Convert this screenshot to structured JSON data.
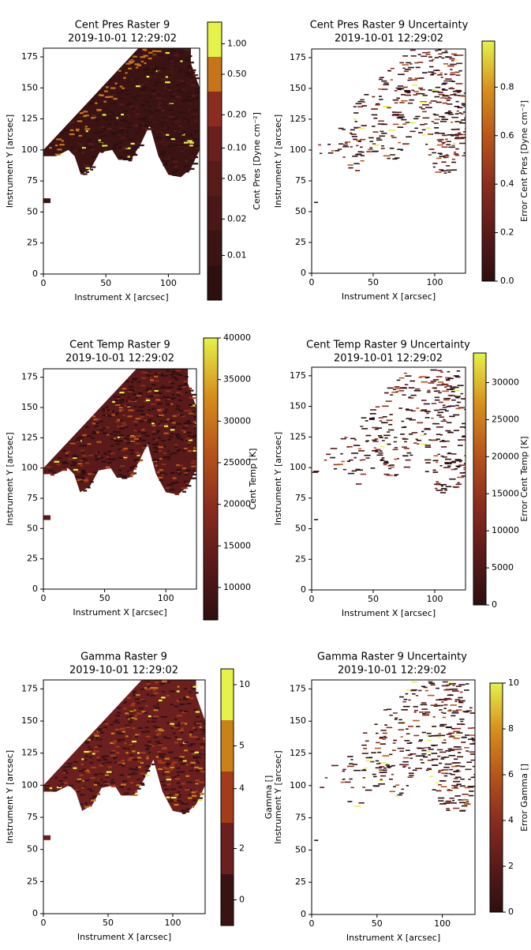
{
  "chart_data": [
    {
      "type": "heatmap",
      "title": "Cent Pres Raster 9",
      "subtitle": "2019-10-01 12:29:02",
      "xlabel": "Instrument X [arcsec]",
      "ylabel": "Instrument Y [arcsec]",
      "xlim": [
        0,
        125
      ],
      "ylim": [
        0,
        182
      ],
      "xticks": [
        0,
        50,
        100
      ],
      "yticks": [
        0,
        25,
        50,
        75,
        100,
        125,
        150,
        175
      ],
      "colorbar": {
        "label": "Cent Pres [Dyne cm⁻²]",
        "scale": "discrete",
        "bounds": [
          0.003,
          0.008,
          0.015,
          0.03,
          0.07,
          0.15,
          0.3,
          0.7,
          1.5
        ],
        "colors": [
          "#2e0f10",
          "#3b1313",
          "#481716",
          "#571b1a",
          "#681f1e",
          "#8a2c1e",
          "#c8741a",
          "#e4f24a"
        ],
        "ticks": [
          0.01,
          0.02,
          0.05,
          {
            "value": 0.1,
            "label": "0.10"
          },
          {
            "value": 0.2,
            "label": "0.20"
          },
          {
            "value": 0.5,
            "label": "0.50"
          },
          {
            "value": 1,
            "label": "1.00"
          }
        ]
      }
    },
    {
      "type": "heatmap",
      "title": "Cent Pres Raster 9 Uncertainty",
      "subtitle": "2019-10-01 12:29:02",
      "xlabel": "Instrument X [arcsec]",
      "ylabel": "Instrument Y [arcsec]",
      "xlim": [
        0,
        125
      ],
      "ylim": [
        0,
        182
      ],
      "xticks": [
        0,
        50,
        100
      ],
      "yticks": [
        0,
        25,
        50,
        75,
        100,
        125,
        150,
        175
      ],
      "colorbar": {
        "label": "Error Cent Pres [Dyne cm⁻²]",
        "scale": "linear",
        "clim": [
          0,
          0.99
        ],
        "colors": [
          "#2e0f10",
          "#5a1a1a",
          "#8a2c1e",
          "#b8551a",
          "#d8901c",
          "#e4f24a"
        ],
        "ticks": [
          {
            "value": 0,
            "label": "0.0"
          },
          0.2,
          0.4,
          0.6,
          0.8
        ]
      }
    },
    {
      "type": "heatmap",
      "title": "Cent Temp Raster 9",
      "subtitle": "2019-10-01 12:29:02",
      "xlabel": "Instrument X [arcsec]",
      "ylabel": "Instrument Y [arcsec]",
      "xlim": [
        0,
        125
      ],
      "ylim": [
        0,
        182
      ],
      "xticks": [
        0,
        50,
        100
      ],
      "yticks": [
        0,
        25,
        50,
        75,
        100,
        125,
        150,
        175
      ],
      "colorbar": {
        "label": "Cent Temp [K]",
        "scale": "linear",
        "clim": [
          6100,
          40000
        ],
        "colors": [
          "#2e0f10",
          "#5a1a1a",
          "#8a2c1e",
          "#b8551a",
          "#d8901c",
          "#e4f24a"
        ],
        "ticks": [
          10000,
          15000,
          20000,
          25000,
          30000,
          35000,
          40000
        ]
      }
    },
    {
      "type": "heatmap",
      "title": "Cent Temp Raster 9 Uncertainty",
      "subtitle": "2019-10-01 12:29:02",
      "xlabel": "Instrument X [arcsec]",
      "ylabel": "Instrument Y [arcsec]",
      "xlim": [
        0,
        125
      ],
      "ylim": [
        0,
        182
      ],
      "xticks": [
        0,
        50,
        100
      ],
      "yticks": [
        0,
        25,
        50,
        75,
        100,
        125,
        150,
        175
      ],
      "colorbar": {
        "label": "Error Cent Temp [K]",
        "scale": "linear",
        "clim": [
          0,
          34000
        ],
        "colors": [
          "#2e0f10",
          "#5a1a1a",
          "#8a2c1e",
          "#b8551a",
          "#d8901c",
          "#e4f24a"
        ],
        "ticks": [
          0,
          5000,
          10000,
          15000,
          20000,
          25000,
          30000
        ]
      }
    },
    {
      "type": "heatmap",
      "title": "Gamma Raster 9",
      "subtitle": "2019-10-01 12:29:02",
      "xlabel": "Instrument X [arcsec]",
      "ylabel": "Instrument Y [arcsec]",
      "xlim": [
        0,
        125
      ],
      "ylim": [
        0,
        182
      ],
      "xticks": [
        0,
        50,
        100
      ],
      "yticks": [
        0,
        25,
        50,
        75,
        100,
        125,
        150,
        175
      ],
      "colorbar": {
        "label": "Gamma []",
        "scale": "discrete",
        "bounds": [
          -1,
          1,
          3,
          4.5,
          5.5,
          12
        ],
        "colors": [
          "#3a1214",
          "#6b1f1f",
          "#a33c1a",
          "#c98218",
          "#e6f24a"
        ],
        "ticks": [
          0,
          2,
          4,
          5,
          10
        ]
      }
    },
    {
      "type": "heatmap",
      "title": "Gamma Raster 9 Uncertainty",
      "subtitle": "2019-10-01 12:29:02",
      "xlabel": "Instrument X [arcsec]",
      "ylabel": "Instrument Y [arcsec]",
      "xlim": [
        0,
        125
      ],
      "ylim": [
        0,
        182
      ],
      "xticks": [
        0,
        50,
        100
      ],
      "yticks": [
        0,
        25,
        50,
        75,
        100,
        125,
        150,
        175
      ],
      "colorbar": {
        "label": "Error Gamma []",
        "scale": "linear",
        "clim": [
          0,
          10
        ],
        "colors": [
          "#2e0f10",
          "#5a1a1a",
          "#8a2c1e",
          "#b8551a",
          "#d8901c",
          "#e4f24a"
        ],
        "ticks": [
          0,
          2,
          4,
          6,
          8,
          10
        ]
      }
    }
  ]
}
